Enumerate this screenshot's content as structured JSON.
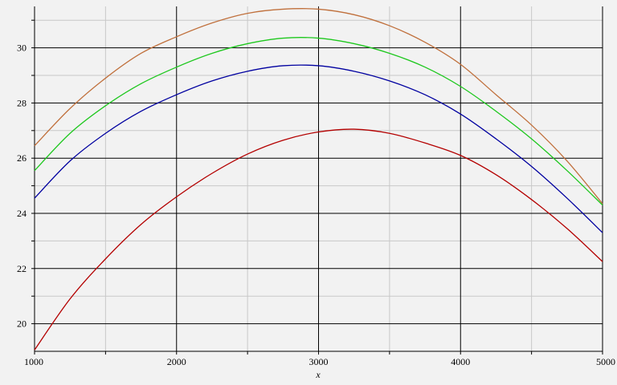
{
  "chart_data": {
    "type": "line",
    "title": "",
    "xlabel": "x",
    "ylabel": "",
    "xlim": [
      1000,
      5000
    ],
    "ylim": [
      19,
      31.5
    ],
    "x_ticks": [
      1000,
      2000,
      3000,
      4000,
      5000
    ],
    "y_ticks": [
      20,
      22,
      24,
      26,
      28,
      30
    ],
    "grid": true,
    "x": [
      1000,
      1250,
      1500,
      1750,
      2000,
      2250,
      2500,
      2750,
      3000,
      3250,
      3500,
      3750,
      4000,
      4250,
      4500,
      4750,
      5000
    ],
    "series": [
      {
        "color": "#c0703c",
        "values": [
          26.45,
          27.8,
          28.9,
          29.8,
          30.4,
          30.9,
          31.25,
          31.4,
          31.4,
          31.2,
          30.8,
          30.2,
          29.4,
          28.3,
          27.2,
          25.9,
          24.35
        ]
      },
      {
        "color": "#1ec81e",
        "values": [
          25.55,
          26.9,
          27.9,
          28.7,
          29.3,
          29.8,
          30.15,
          30.35,
          30.35,
          30.15,
          29.8,
          29.3,
          28.6,
          27.7,
          26.7,
          25.55,
          24.3
        ]
      },
      {
        "color": "#0000a0",
        "values": [
          24.55,
          25.9,
          26.9,
          27.7,
          28.3,
          28.8,
          29.15,
          29.35,
          29.35,
          29.15,
          28.8,
          28.3,
          27.6,
          26.7,
          25.7,
          24.55,
          23.3
        ]
      },
      {
        "color": "#b40000",
        "values": [
          19.05,
          20.9,
          22.35,
          23.6,
          24.6,
          25.45,
          26.15,
          26.65,
          26.95,
          27.05,
          26.9,
          26.55,
          26.1,
          25.4,
          24.5,
          23.45,
          22.25
        ]
      }
    ]
  }
}
